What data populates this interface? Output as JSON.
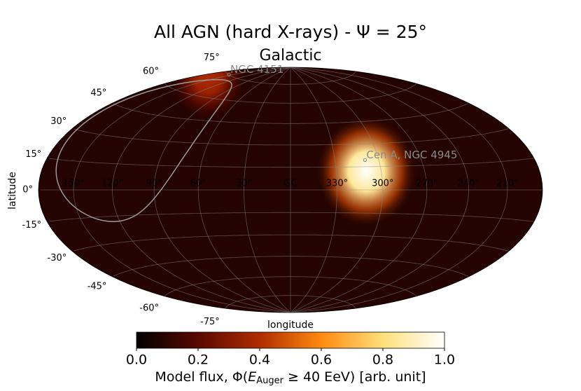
{
  "chart_data": {
    "type": "skymap",
    "title": "All AGN (hard X-rays) - Ψ = 25°",
    "subtitle": "Galactic",
    "xlabel": "longitude",
    "ylabel": "latitude",
    "projection": "hammer",
    "lon_ticks": [
      {
        "value": 150,
        "label": "150°"
      },
      {
        "value": 120,
        "label": "120°"
      },
      {
        "value": 90,
        "label": "90°"
      },
      {
        "value": 60,
        "label": "60°"
      },
      {
        "value": 30,
        "label": "30°"
      },
      {
        "value": 0,
        "label": "GC"
      },
      {
        "value": 330,
        "label": "330°"
      },
      {
        "value": 300,
        "label": "300°"
      },
      {
        "value": 270,
        "label": "270°"
      },
      {
        "value": 240,
        "label": "240°"
      },
      {
        "value": 210,
        "label": "210°"
      }
    ],
    "lat_ticks": [
      {
        "value": 75,
        "label": "75°"
      },
      {
        "value": 60,
        "label": "60°"
      },
      {
        "value": 45,
        "label": "45°"
      },
      {
        "value": 30,
        "label": "30°"
      },
      {
        "value": 15,
        "label": "15°"
      },
      {
        "value": 0,
        "label": "0°"
      },
      {
        "value": -15,
        "label": "-15°"
      },
      {
        "value": -30,
        "label": "-30°"
      },
      {
        "value": -45,
        "label": "-45°"
      },
      {
        "value": -60,
        "label": "-60°"
      },
      {
        "value": -75,
        "label": "-75°"
      }
    ],
    "grid": true,
    "flux_background": 0.08,
    "flux_spots": [
      {
        "lon": 310,
        "lat": 12,
        "value": 1.0,
        "radius": 28
      },
      {
        "lon": 160,
        "lat": 70,
        "value": 0.4,
        "radius": 22
      }
    ],
    "sources": [
      {
        "name": "NGC 4151",
        "lon": 155,
        "lat": 75.1
      },
      {
        "name": "Cen A, NGC 4945",
        "lon": 309.5,
        "lat": 19.4
      }
    ],
    "fov_declination": 44.8,
    "colormap": [
      "#000000",
      "#5a0800",
      "#b02c00",
      "#ff8a10",
      "#ffe07a",
      "#ffffff"
    ],
    "colorbar": {
      "xlim": [
        0,
        1
      ],
      "xticks": [
        {
          "value": 0,
          "label": "0.0"
        },
        {
          "value": 0.2,
          "label": "0.2"
        },
        {
          "value": 0.4,
          "label": "0.4"
        },
        {
          "value": 0.6,
          "label": "0.6"
        },
        {
          "value": 0.8,
          "label": "0.8"
        },
        {
          "value": 1,
          "label": "1.0"
        }
      ],
      "label_main": "Model flux, Φ(",
      "label_sym": "E",
      "label_sub": "Auger",
      "label_rest": " ≥ 40 EeV) [arb. unit]"
    }
  }
}
